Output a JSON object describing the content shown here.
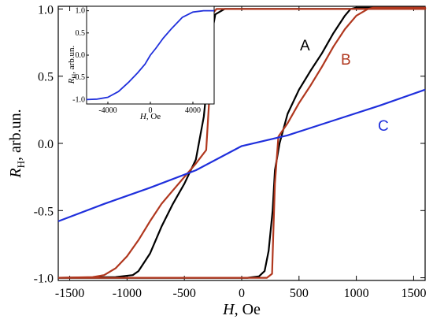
{
  "chart_data": [
    {
      "type": "line",
      "xlabel": {
        "symbol": "H",
        "unit": ", Oe"
      },
      "ylabel": {
        "symbol": "R",
        "sub": "H",
        "unit": ", arb.un."
      },
      "xlim": [
        -1600,
        1600
      ],
      "ylim": [
        -1.02,
        1.02
      ],
      "xticks": [
        -1500,
        -1000,
        -500,
        0,
        500,
        1000,
        1500
      ],
      "yticks": [
        -1.0,
        -0.5,
        0.0,
        0.5,
        1.0
      ],
      "xtick_labels": [
        "-1500",
        "-1000",
        "-500",
        "0",
        "500",
        "1000",
        "1500"
      ],
      "ytick_labels": [
        "-1.0",
        "-0.5",
        "0.0",
        "0.5",
        "1.0"
      ],
      "series": [
        {
          "name": "A",
          "color": "#000000",
          "points": [
            [
              -1600,
              -1.0
            ],
            [
              -1100,
              -0.995
            ],
            [
              -950,
              -0.98
            ],
            [
              -900,
              -0.95
            ],
            [
              -800,
              -0.82
            ],
            [
              -700,
              -0.62
            ],
            [
              -600,
              -0.45
            ],
            [
              -500,
              -0.3
            ],
            [
              -400,
              -0.12
            ],
            [
              -330,
              0.2
            ],
            [
              -290,
              0.55
            ],
            [
              -260,
              0.82
            ],
            [
              -230,
              0.96
            ],
            [
              -150,
              1.0
            ],
            [
              1600,
              1.0
            ],
            [
              1600,
              1.01
            ],
            [
              1000,
              1.01
            ],
            [
              950,
              1.0
            ],
            [
              900,
              0.95
            ],
            [
              800,
              0.82
            ],
            [
              700,
              0.67
            ],
            [
              600,
              0.54
            ],
            [
              500,
              0.4
            ],
            [
              400,
              0.22
            ],
            [
              330,
              0.0
            ],
            [
              290,
              -0.2
            ],
            [
              270,
              -0.5
            ],
            [
              235,
              -0.8
            ],
            [
              200,
              -0.95
            ],
            [
              150,
              -0.99
            ],
            [
              50,
              -1.0
            ],
            [
              -1600,
              -1.0
            ]
          ]
        },
        {
          "name": "B",
          "color": "#b0371e",
          "points": [
            [
              -1600,
              -1.0
            ],
            [
              -1300,
              -0.995
            ],
            [
              -1200,
              -0.98
            ],
            [
              -1100,
              -0.93
            ],
            [
              -1000,
              -0.84
            ],
            [
              -900,
              -0.72
            ],
            [
              -800,
              -0.58
            ],
            [
              -700,
              -0.45
            ],
            [
              -600,
              -0.35
            ],
            [
              -500,
              -0.25
            ],
            [
              -400,
              -0.15
            ],
            [
              -310,
              -0.05
            ],
            [
              -285,
              0.3
            ],
            [
              -270,
              0.7
            ],
            [
              -250,
              0.97
            ],
            [
              -220,
              1.0
            ],
            [
              1600,
              1.0
            ],
            [
              1600,
              1.01
            ],
            [
              1150,
              1.01
            ],
            [
              1100,
              1.0
            ],
            [
              1000,
              0.95
            ],
            [
              900,
              0.85
            ],
            [
              800,
              0.72
            ],
            [
              700,
              0.57
            ],
            [
              600,
              0.43
            ],
            [
              500,
              0.3
            ],
            [
              400,
              0.15
            ],
            [
              320,
              0.05
            ],
            [
              290,
              -0.3
            ],
            [
              275,
              -0.7
            ],
            [
              265,
              -0.97
            ],
            [
              220,
              -1.0
            ],
            [
              -1600,
              -1.0
            ]
          ]
        },
        {
          "name": "C",
          "color": "#1f2fdc",
          "points": [
            [
              -1600,
              -0.58
            ],
            [
              -1200,
              -0.45
            ],
            [
              -800,
              -0.33
            ],
            [
              -400,
              -0.2
            ],
            [
              0,
              -0.02
            ],
            [
              400,
              0.06
            ],
            [
              800,
              0.17
            ],
            [
              1200,
              0.28
            ],
            [
              1600,
              0.4
            ]
          ]
        }
      ]
    },
    {
      "type": "line",
      "xlabel": {
        "symbol": "H",
        "unit": ", Oe"
      },
      "ylabel": {
        "symbol": "R",
        "sub": "H",
        "unit": ", arb.un."
      },
      "xlim": [
        -6000,
        6000
      ],
      "ylim": [
        -1.1,
        1.1
      ],
      "xticks": [
        -4000,
        0,
        4000
      ],
      "yticks": [
        -1.0,
        -0.5,
        0.0,
        0.5,
        1.0
      ],
      "xtick_labels": [
        "-4000",
        "0",
        "4000"
      ],
      "ytick_labels": [
        "-1.0",
        "-0.5",
        "0.0",
        "0.5",
        "1.0"
      ],
      "series": [
        {
          "color": "#1f2fdc",
          "points": [
            [
              -6000,
              -1.0
            ],
            [
              -5000,
              -0.99
            ],
            [
              -4000,
              -0.95
            ],
            [
              -3000,
              -0.82
            ],
            [
              -2000,
              -0.6
            ],
            [
              -1200,
              -0.4
            ],
            [
              -500,
              -0.2
            ],
            [
              0,
              0.0
            ],
            [
              500,
              0.15
            ],
            [
              1200,
              0.38
            ],
            [
              2000,
              0.6
            ],
            [
              3000,
              0.85
            ],
            [
              4000,
              0.97
            ],
            [
              5000,
              1.0
            ],
            [
              6000,
              1.0
            ]
          ]
        }
      ]
    }
  ]
}
